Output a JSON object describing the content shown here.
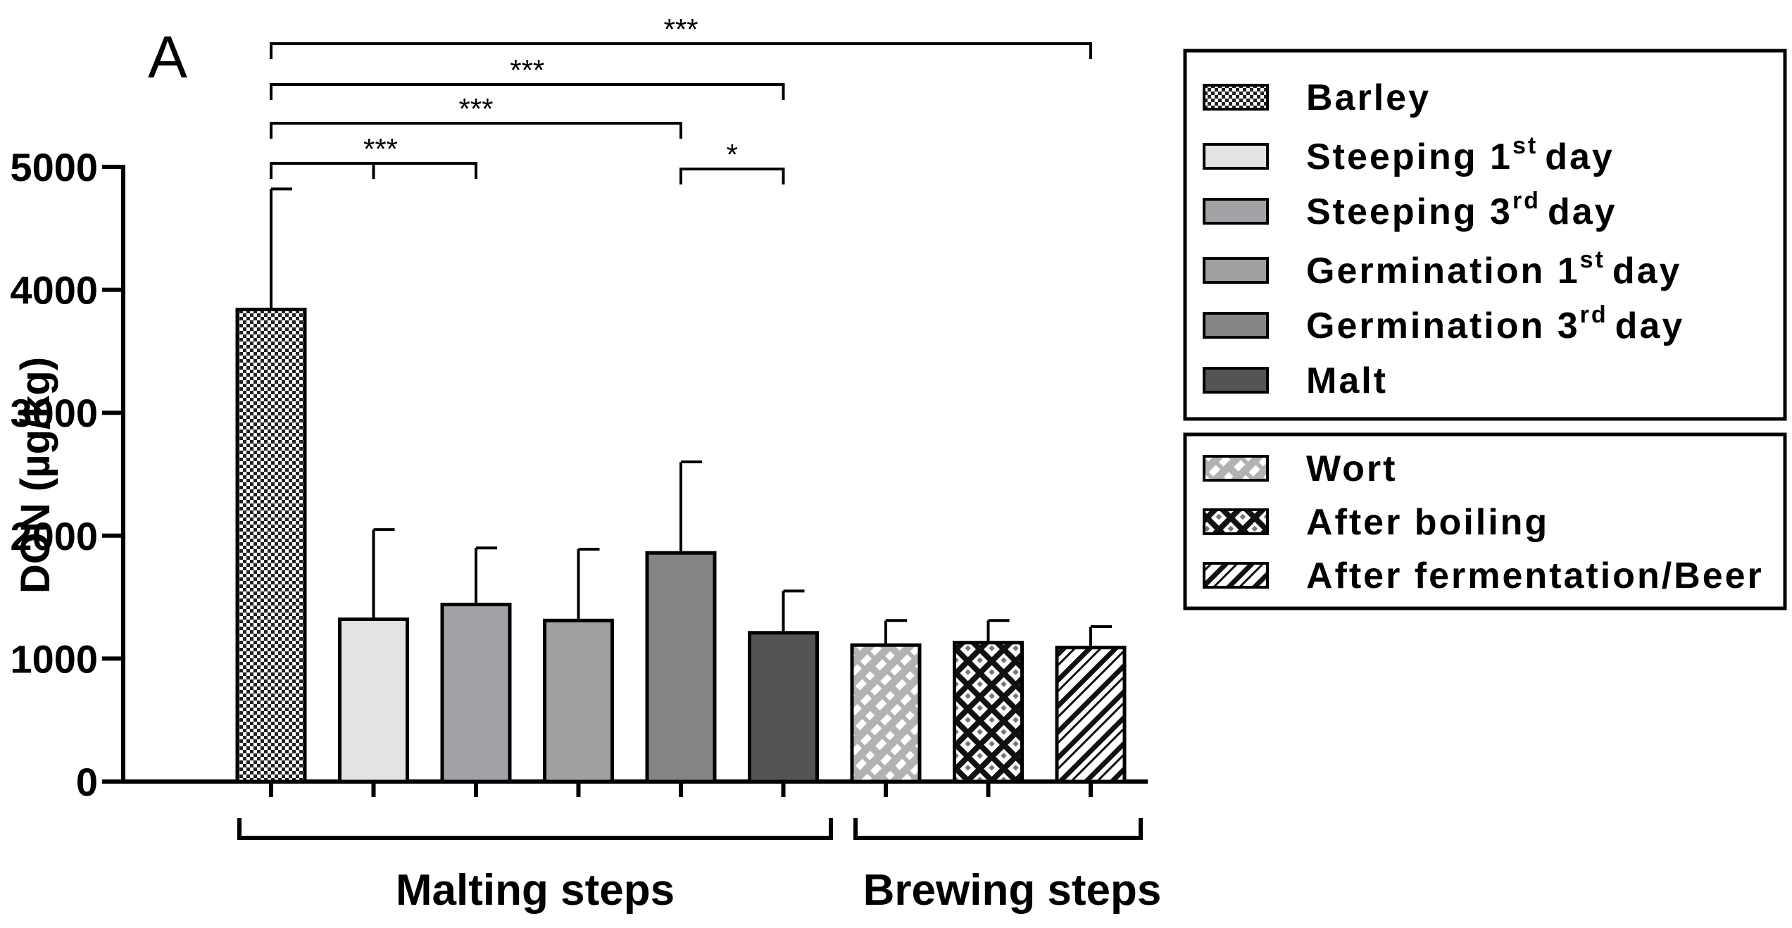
{
  "panel_label": "A",
  "chart_data": {
    "type": "bar",
    "title": "",
    "xlabel": "",
    "ylabel": "DON (µg/kg)",
    "ylim": [
      0,
      5000
    ],
    "yticks": [
      0,
      1000,
      2000,
      3000,
      4000,
      5000
    ],
    "categories": [
      "Barley",
      "Steeping 1st day",
      "Steeping 3rd day",
      "Germination 1st day",
      "Germination 3rd day",
      "Malt",
      "Wort",
      "After boiling",
      "After fermentation/Beer"
    ],
    "values": [
      3840,
      1320,
      1440,
      1310,
      1860,
      1210,
      1110,
      1130,
      1090
    ],
    "errors": [
      980,
      730,
      460,
      580,
      740,
      340,
      200,
      180,
      170
    ],
    "colors": [
      "checker",
      "#e3e3e3",
      "#a2a3a7",
      "#a0a0a0",
      "#858585",
      "#545454",
      "hatch-light",
      "hatch-dark",
      "hatch-white"
    ],
    "groups": [
      {
        "label": "Malting steps",
        "from": 0,
        "to": 5
      },
      {
        "label": "Brewing steps",
        "from": 6,
        "to": 8
      }
    ],
    "significance": [
      {
        "from": 0,
        "to": 8,
        "label": "***"
      },
      {
        "from": 0,
        "to": 5,
        "label": "***"
      },
      {
        "from": 0,
        "to": 4,
        "label": "***"
      },
      {
        "from": 0,
        "to": 2,
        "label": "***",
        "mid": 1
      },
      {
        "from": 4,
        "to": 5,
        "label": "*"
      }
    ],
    "legend": {
      "position": "right",
      "boxes": [
        [
          {
            "label": "Barley",
            "sup": "",
            "suffix": "",
            "fill": "checker"
          },
          {
            "label": "Steeping 1",
            "sup": "st",
            "suffix": "day",
            "fill": "#e3e3e3"
          },
          {
            "label": "Steeping 3",
            "sup": "rd",
            "suffix": "day",
            "fill": "#a2a3a7"
          },
          {
            "label": "Germination 1",
            "sup": "st",
            "suffix": "day",
            "fill": "#a0a0a0"
          },
          {
            "label": "Germination 3",
            "sup": "rd",
            "suffix": "day",
            "fill": "#858585"
          },
          {
            "label": "Malt",
            "sup": "",
            "suffix": "",
            "fill": "#545454"
          }
        ],
        [
          {
            "label": "Wort",
            "sup": "",
            "suffix": "",
            "fill": "hatch-light"
          },
          {
            "label": "After boiling",
            "sup": "",
            "suffix": "",
            "fill": "hatch-dark"
          },
          {
            "label": "After fermentation/Beer",
            "sup": "",
            "suffix": "",
            "fill": "hatch-white"
          }
        ]
      ]
    }
  }
}
